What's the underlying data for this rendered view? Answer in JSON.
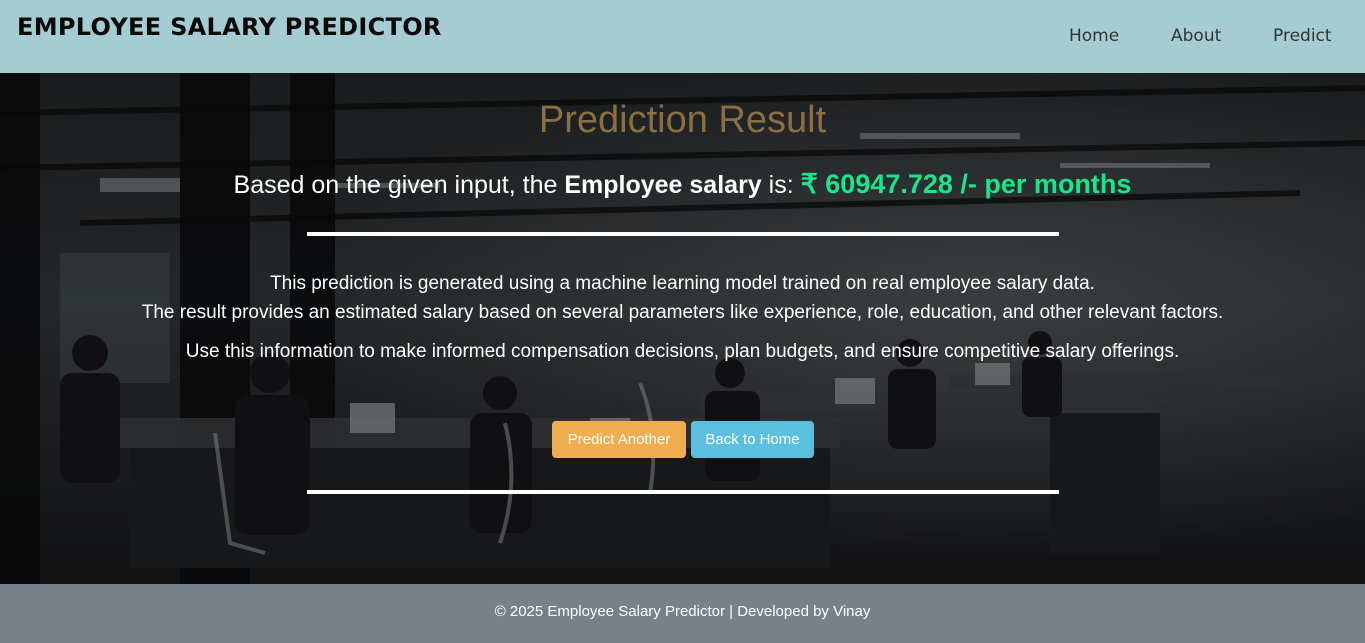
{
  "navbar": {
    "brand": "EMPLOYEE SALARY PREDICTOR",
    "links": [
      "Home",
      "About",
      "Predict"
    ],
    "background": "#a5ccd3"
  },
  "result": {
    "title": "Prediction Result",
    "intro": "Based on the given input, the ",
    "bold": "Employee salary",
    "is_text": " is: ",
    "salary": "₹ 60947.728 /- per months",
    "salary_color": "#19e58a",
    "title_color": "#8a6f43"
  },
  "description": {
    "line1": "This prediction is generated using a machine learning model trained on real employee salary data.",
    "line2": "The result provides an estimated salary based on several parameters like experience, role, education, and other relevant factors.",
    "line3": "Use this information to make informed compensation decisions, plan budgets, and ensure competitive salary offerings."
  },
  "buttons": {
    "predict_another": "Predict Another",
    "back_home": "Back to Home",
    "predict_color": "#f0ad4e",
    "home_color": "#5bc0de"
  },
  "footer": {
    "text": "© 2025 Employee Salary Predictor | Developed by Vinay",
    "background": "#77818a"
  },
  "background_image": {
    "icon": "office-photo-background"
  }
}
